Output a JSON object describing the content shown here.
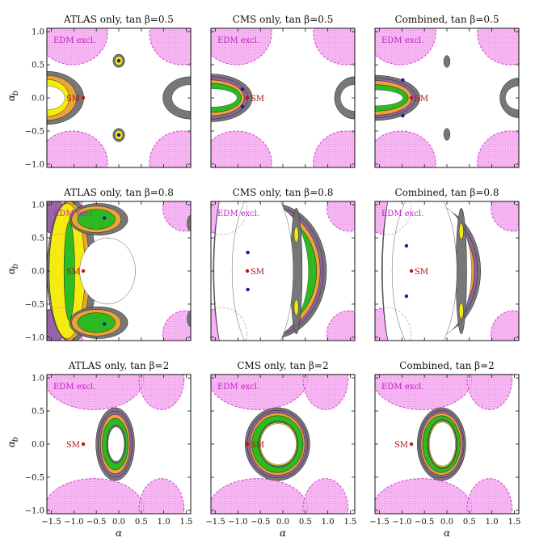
{
  "chart_data": {
    "type": "contour-grid",
    "xlabel": "α",
    "ylabel": "α_b",
    "xlim": [
      -1.6,
      1.6
    ],
    "ylim": [
      -1.05,
      1.05
    ],
    "xticks": [
      "−1.5",
      "−1.0",
      "−0.5",
      "0.0",
      "0.5",
      "1.0",
      "1.5"
    ],
    "xtick_values": [
      -1.5,
      -1.0,
      -0.5,
      0.0,
      0.5,
      1.0,
      1.5
    ],
    "yticks": [
      "1.0",
      "0.5",
      "0.0",
      "−0.5",
      "−1.0"
    ],
    "ytick_values": [
      1.0,
      0.5,
      0.0,
      -0.5,
      -1.0
    ],
    "edm_label": "EDM excl.",
    "sm_label": "SM",
    "sm_point": [
      -0.79,
      0.0
    ],
    "colors": {
      "edm": "#f6b7f3",
      "edm_border": "#d040d0",
      "gray": "#707070",
      "orange": "#f0a830",
      "yellow": "#f7ee10",
      "green": "#22bb22",
      "purple": "#9060a0",
      "sm": "#cc1010",
      "bestfit": "#1a1aa8"
    },
    "panels": [
      {
        "title": "ATLAS only, tan β=0.5",
        "tanb": 0.5,
        "edm_regions": [
          {
            "cx": -1.03,
            "cy": 0.98,
            "rx": 0.78,
            "ry": 0.48
          },
          {
            "cx": 1.4,
            "cy": 0.98,
            "rx": 0.72,
            "ry": 0.48
          },
          {
            "cx": -1.03,
            "cy": -0.98,
            "rx": 0.78,
            "ry": 0.48
          },
          {
            "cx": 1.4,
            "cy": -0.98,
            "rx": 0.72,
            "ry": 0.48
          }
        ],
        "contours": [
          {
            "color": "gray",
            "cx": -1.6,
            "cy": 0.0,
            "rx": 0.82,
            "ry": 0.4
          },
          {
            "color": "orange",
            "cx": -1.6,
            "cy": 0.0,
            "rx": 0.66,
            "ry": 0.34
          },
          {
            "color": "yellow",
            "cx": -1.6,
            "cy": 0.0,
            "rx": 0.5,
            "ry": 0.28
          },
          {
            "color": "white",
            "cx": -1.6,
            "cy": 0.0,
            "rx": 0.4,
            "ry": 0.18
          },
          {
            "color": "gray",
            "cx": 0.0,
            "cy": 0.56,
            "rx": 0.13,
            "ry": 0.1
          },
          {
            "color": "yellow",
            "cx": 0.0,
            "cy": 0.56,
            "rx": 0.09,
            "ry": 0.07
          },
          {
            "color": "gray",
            "cx": 0.0,
            "cy": -0.56,
            "rx": 0.13,
            "ry": 0.1
          },
          {
            "color": "yellow",
            "cx": 0.0,
            "cy": -0.56,
            "rx": 0.09,
            "ry": 0.07
          },
          {
            "color": "gray",
            "cx": 1.6,
            "cy": 0.0,
            "rx": 0.62,
            "ry": 0.32
          },
          {
            "color": "white",
            "cx": 1.6,
            "cy": 0.0,
            "rx": 0.42,
            "ry": 0.2
          }
        ],
        "best_fit": [
          [
            0.0,
            0.56
          ],
          [
            0.0,
            -0.56
          ]
        ]
      },
      {
        "title": "CMS only, tan β=0.5",
        "tanb": 0.5,
        "edm_regions": [
          {
            "cx": -1.03,
            "cy": 0.98,
            "rx": 0.78,
            "ry": 0.48
          },
          {
            "cx": 1.4,
            "cy": 0.98,
            "rx": 0.72,
            "ry": 0.48
          },
          {
            "cx": -1.03,
            "cy": -0.98,
            "rx": 0.78,
            "ry": 0.48
          },
          {
            "cx": 1.4,
            "cy": -0.98,
            "rx": 0.72,
            "ry": 0.48
          }
        ],
        "contours": [
          {
            "color": "gray",
            "cx": -1.6,
            "cy": 0.0,
            "rx": 0.92,
            "ry": 0.36
          },
          {
            "color": "purple",
            "cx": -1.6,
            "cy": 0.0,
            "rx": 0.82,
            "ry": 0.32
          },
          {
            "color": "orange",
            "cx": -1.6,
            "cy": 0.0,
            "rx": 0.74,
            "ry": 0.27
          },
          {
            "color": "green",
            "cx": -1.6,
            "cy": 0.0,
            "rx": 0.68,
            "ry": 0.22
          },
          {
            "color": "white",
            "cx": -1.6,
            "cy": 0.0,
            "rx": 0.58,
            "ry": 0.14
          },
          {
            "color": "gray",
            "cx": 1.6,
            "cy": 0.0,
            "rx": 0.45,
            "ry": 0.32
          },
          {
            "color": "white",
            "cx": 1.6,
            "cy": 0.0,
            "rx": 0.32,
            "ry": 0.2
          }
        ],
        "best_fit": [
          [
            -0.9,
            0.13
          ],
          [
            -0.9,
            -0.13
          ]
        ]
      },
      {
        "title": "Combined, tan β=0.5",
        "tanb": 0.5,
        "edm_regions": [
          {
            "cx": -1.03,
            "cy": 0.98,
            "rx": 0.78,
            "ry": 0.48
          },
          {
            "cx": 1.4,
            "cy": 0.98,
            "rx": 0.72,
            "ry": 0.48
          },
          {
            "cx": -1.03,
            "cy": -0.98,
            "rx": 0.78,
            "ry": 0.48
          },
          {
            "cx": 1.4,
            "cy": -0.98,
            "rx": 0.72,
            "ry": 0.48
          }
        ],
        "contours": [
          {
            "color": "gray",
            "cx": -1.6,
            "cy": 0.0,
            "rx": 1.0,
            "ry": 0.34
          },
          {
            "color": "purple",
            "cx": -1.6,
            "cy": 0.0,
            "rx": 0.9,
            "ry": 0.3
          },
          {
            "color": "orange",
            "cx": -1.6,
            "cy": 0.0,
            "rx": 0.82,
            "ry": 0.26
          },
          {
            "color": "green",
            "cx": -1.6,
            "cy": 0.0,
            "rx": 0.74,
            "ry": 0.2
          },
          {
            "color": "white",
            "cx": -1.6,
            "cy": 0.0,
            "rx": 0.62,
            "ry": 0.12
          },
          {
            "color": "gray",
            "cx": 0.0,
            "cy": 0.55,
            "rx": 0.07,
            "ry": 0.09
          },
          {
            "color": "gray",
            "cx": 0.0,
            "cy": -0.55,
            "rx": 0.07,
            "ry": 0.09
          },
          {
            "color": "gray",
            "cx": 1.6,
            "cy": 0.0,
            "rx": 0.42,
            "ry": 0.3
          },
          {
            "color": "white",
            "cx": 1.6,
            "cy": 0.0,
            "rx": 0.3,
            "ry": 0.18
          }
        ],
        "best_fit": [
          [
            -0.98,
            0.27
          ],
          [
            -0.98,
            -0.27
          ]
        ]
      },
      {
        "title": "ATLAS only, tan β=0.8",
        "tanb": 0.8,
        "edm_regions": [
          {
            "cx": -1.35,
            "cy": 0.95,
            "rx": 0.55,
            "ry": 0.4
          },
          {
            "cx": 1.48,
            "cy": 0.95,
            "rx": 0.5,
            "ry": 0.35
          },
          {
            "cx": -1.35,
            "cy": -0.95,
            "rx": 0.55,
            "ry": 0.4
          },
          {
            "cx": 1.48,
            "cy": -0.95,
            "rx": 0.5,
            "ry": 0.35
          }
        ],
        "contours": [
          {
            "color": "purple",
            "cx": -1.45,
            "cy": 0.82,
            "rx": 0.3,
            "ry": 0.25
          },
          {
            "color": "purple",
            "cx": -1.45,
            "cy": -0.82,
            "rx": 0.3,
            "ry": 0.25
          },
          {
            "color": "gray",
            "cx": -1.05,
            "cy": 0.0,
            "rx": 0.55,
            "ry": 1.08
          },
          {
            "color": "orange",
            "cx": -1.1,
            "cy": 0.0,
            "rx": 0.45,
            "ry": 1.05
          },
          {
            "color": "yellow",
            "cx": -1.15,
            "cy": 0.0,
            "rx": 0.4,
            "ry": 1.02
          },
          {
            "color": "gray",
            "cx": -0.45,
            "cy": 0.78,
            "rx": 0.65,
            "ry": 0.24
          },
          {
            "color": "orange",
            "cx": -0.5,
            "cy": 0.78,
            "rx": 0.55,
            "ry": 0.2
          },
          {
            "color": "green",
            "cx": -0.5,
            "cy": 0.78,
            "rx": 0.42,
            "ry": 0.15
          },
          {
            "color": "gray",
            "cx": -0.45,
            "cy": -0.78,
            "rx": 0.65,
            "ry": 0.24
          },
          {
            "color": "orange",
            "cx": -0.5,
            "cy": -0.78,
            "rx": 0.55,
            "ry": 0.2
          },
          {
            "color": "green",
            "cx": -0.5,
            "cy": -0.78,
            "rx": 0.42,
            "ry": 0.15
          },
          {
            "color": "green",
            "cx": -1.1,
            "cy": 0.0,
            "rx": 0.12,
            "ry": 0.75
          },
          {
            "color": "white",
            "cx": -0.25,
            "cy": 0.0,
            "rx": 0.62,
            "ry": 0.5
          },
          {
            "color": "gray",
            "cx": 1.6,
            "cy": 0.72,
            "rx": 0.08,
            "ry": 0.12
          },
          {
            "color": "gray",
            "cx": 1.6,
            "cy": -0.72,
            "rx": 0.08,
            "ry": 0.12
          }
        ],
        "best_fit": [
          [
            -0.32,
            0.8
          ],
          [
            -0.32,
            -0.8
          ]
        ]
      },
      {
        "title": "CMS only, tan β=0.8",
        "tanb": 0.8,
        "edm_regions": [
          {
            "cx": -1.35,
            "cy": 0.95,
            "rx": 0.55,
            "ry": 0.4
          },
          {
            "cx": 1.48,
            "cy": 0.95,
            "rx": 0.5,
            "ry": 0.35
          },
          {
            "cx": -1.35,
            "cy": -0.95,
            "rx": 0.55,
            "ry": 0.4
          },
          {
            "cx": 1.48,
            "cy": -0.95,
            "rx": 0.5,
            "ry": 0.35
          }
        ],
        "contours": [
          {
            "color": "gray",
            "cx": -0.25,
            "cy": 0.0,
            "rx": 1.22,
            "ry": 1.02
          },
          {
            "color": "purple",
            "cx": -0.25,
            "cy": 0.0,
            "rx": 1.15,
            "ry": 0.97
          },
          {
            "color": "orange",
            "cx": -0.25,
            "cy": 0.0,
            "rx": 1.08,
            "ry": 0.92
          },
          {
            "color": "green",
            "cx": -0.25,
            "cy": 0.0,
            "rx": 1.0,
            "ry": 0.85
          },
          {
            "color": "white",
            "cx": -0.25,
            "cy": 0.0,
            "rx": 0.82,
            "ry": 0.98
          },
          {
            "color": "gray",
            "cx": -1.0,
            "cy": 0.0,
            "rx": 0.55,
            "ry": 1.6
          },
          {
            "color": "white",
            "cx": -1.05,
            "cy": 0.0,
            "rx": 0.48,
            "ry": 1.6
          },
          {
            "color": "gray",
            "cx": 0.3,
            "cy": 0.0,
            "rx": 0.13,
            "ry": 0.95
          },
          {
            "color": "white",
            "cx": -0.45,
            "cy": 0.0,
            "rx": 0.68,
            "ry": 1.3
          },
          {
            "color": "yellow",
            "cx": 0.3,
            "cy": 0.55,
            "rx": 0.05,
            "ry": 0.12
          },
          {
            "color": "yellow",
            "cx": 0.3,
            "cy": -0.55,
            "rx": 0.05,
            "ry": 0.12
          }
        ],
        "best_fit": [
          [
            -0.78,
            0.28
          ],
          [
            -0.78,
            -0.28
          ]
        ]
      },
      {
        "title": "Combined, tan β=0.8",
        "tanb": 0.8,
        "edm_regions": [
          {
            "cx": -1.35,
            "cy": 0.95,
            "rx": 0.55,
            "ry": 0.4
          },
          {
            "cx": 1.48,
            "cy": 0.95,
            "rx": 0.5,
            "ry": 0.35
          },
          {
            "cx": -1.35,
            "cy": -0.95,
            "rx": 0.55,
            "ry": 0.4
          },
          {
            "cx": 1.48,
            "cy": -0.95,
            "rx": 0.5,
            "ry": 0.35
          }
        ],
        "contours": [
          {
            "color": "gray",
            "cx": -0.35,
            "cy": 0.0,
            "rx": 1.1,
            "ry": 0.98
          },
          {
            "color": "purple",
            "cx": -0.35,
            "cy": 0.0,
            "rx": 1.03,
            "ry": 0.93
          },
          {
            "color": "orange",
            "cx": -0.35,
            "cy": 0.0,
            "rx": 0.96,
            "ry": 0.86
          },
          {
            "color": "green",
            "cx": -0.35,
            "cy": 0.0,
            "rx": 0.88,
            "ry": 0.76
          },
          {
            "color": "white",
            "cx": -0.25,
            "cy": 0.0,
            "rx": 0.8,
            "ry": 1.0
          },
          {
            "color": "gray",
            "cx": -0.9,
            "cy": 0.0,
            "rx": 0.55,
            "ry": 1.6
          },
          {
            "color": "white",
            "cx": -0.95,
            "cy": 0.0,
            "rx": 0.48,
            "ry": 1.6
          },
          {
            "color": "gray",
            "cx": 0.32,
            "cy": 0.0,
            "rx": 0.12,
            "ry": 0.95
          },
          {
            "color": "white",
            "cx": -0.5,
            "cy": 0.0,
            "rx": 0.72,
            "ry": 1.3
          },
          {
            "color": "yellow",
            "cx": 0.32,
            "cy": 0.6,
            "rx": 0.05,
            "ry": 0.12
          },
          {
            "color": "yellow",
            "cx": 0.32,
            "cy": -0.6,
            "rx": 0.05,
            "ry": 0.12
          }
        ],
        "best_fit": [
          [
            -0.9,
            0.38
          ],
          [
            -0.9,
            -0.38
          ]
        ]
      },
      {
        "title": "ATLAS only, tan β=2",
        "tanb": 2,
        "edm_regions": [
          {
            "cx": -0.55,
            "cy": 0.98,
            "rx": 1.1,
            "ry": 0.46
          },
          {
            "cx": 0.95,
            "cy": 0.98,
            "rx": 0.5,
            "ry": 0.46
          },
          {
            "cx": -0.55,
            "cy": -0.98,
            "rx": 1.1,
            "ry": 0.46
          },
          {
            "cx": 0.95,
            "cy": -0.98,
            "rx": 0.5,
            "ry": 0.46
          }
        ],
        "contours": [
          {
            "color": "gray",
            "cx": -0.08,
            "cy": 0.0,
            "rx": 0.43,
            "ry": 0.55
          },
          {
            "color": "purple",
            "cx": -0.08,
            "cy": 0.0,
            "rx": 0.38,
            "ry": 0.5
          },
          {
            "color": "orange",
            "cx": -0.08,
            "cy": 0.0,
            "rx": 0.33,
            "ry": 0.45
          },
          {
            "color": "green",
            "cx": -0.08,
            "cy": 0.0,
            "rx": 0.29,
            "ry": 0.39
          },
          {
            "color": "gray",
            "cx": -0.06,
            "cy": 0.0,
            "rx": 0.21,
            "ry": 0.29
          },
          {
            "color": "white",
            "cx": -0.06,
            "cy": 0.0,
            "rx": 0.18,
            "ry": 0.26
          }
        ],
        "best_fit": []
      },
      {
        "title": "CMS only, tan β=2",
        "tanb": 2,
        "edm_regions": [
          {
            "cx": -0.55,
            "cy": 0.98,
            "rx": 1.1,
            "ry": 0.46
          },
          {
            "cx": 0.95,
            "cy": 0.98,
            "rx": 0.5,
            "ry": 0.46
          },
          {
            "cx": -0.55,
            "cy": -0.98,
            "rx": 1.1,
            "ry": 0.46
          },
          {
            "cx": 0.95,
            "cy": -0.98,
            "rx": 0.5,
            "ry": 0.46
          }
        ],
        "contours": [
          {
            "color": "gray",
            "cx": -0.12,
            "cy": 0.0,
            "rx": 0.72,
            "ry": 0.55
          },
          {
            "color": "purple",
            "cx": -0.12,
            "cy": 0.0,
            "rx": 0.67,
            "ry": 0.51
          },
          {
            "color": "orange",
            "cx": -0.12,
            "cy": 0.0,
            "rx": 0.61,
            "ry": 0.47
          },
          {
            "color": "green",
            "cx": -0.12,
            "cy": 0.0,
            "rx": 0.57,
            "ry": 0.43
          },
          {
            "color": "gray",
            "cx": -0.1,
            "cy": 0.0,
            "rx": 0.44,
            "ry": 0.35
          },
          {
            "color": "yellow",
            "cx": -0.1,
            "cy": 0.0,
            "rx": 0.42,
            "ry": 0.33
          },
          {
            "color": "white",
            "cx": -0.1,
            "cy": 0.0,
            "rx": 0.4,
            "ry": 0.31
          }
        ],
        "best_fit": []
      },
      {
        "title": "Combined, tan β=2",
        "tanb": 2,
        "edm_regions": [
          {
            "cx": -0.55,
            "cy": 0.98,
            "rx": 1.1,
            "ry": 0.46
          },
          {
            "cx": 0.95,
            "cy": 0.98,
            "rx": 0.5,
            "ry": 0.46
          },
          {
            "cx": -0.55,
            "cy": -0.98,
            "rx": 1.1,
            "ry": 0.46
          },
          {
            "cx": 0.95,
            "cy": -0.98,
            "rx": 0.5,
            "ry": 0.46
          }
        ],
        "contours": [
          {
            "color": "gray",
            "cx": -0.12,
            "cy": 0.0,
            "rx": 0.54,
            "ry": 0.55
          },
          {
            "color": "purple",
            "cx": -0.12,
            "cy": 0.0,
            "rx": 0.5,
            "ry": 0.51
          },
          {
            "color": "orange",
            "cx": -0.12,
            "cy": 0.0,
            "rx": 0.46,
            "ry": 0.47
          },
          {
            "color": "green",
            "cx": -0.12,
            "cy": 0.0,
            "rx": 0.42,
            "ry": 0.43
          },
          {
            "color": "gray",
            "cx": -0.1,
            "cy": 0.0,
            "rx": 0.33,
            "ry": 0.37
          },
          {
            "color": "yellow",
            "cx": -0.1,
            "cy": 0.0,
            "rx": 0.31,
            "ry": 0.35
          },
          {
            "color": "white",
            "cx": -0.1,
            "cy": 0.0,
            "rx": 0.29,
            "ry": 0.33
          }
        ],
        "best_fit": []
      }
    ]
  }
}
